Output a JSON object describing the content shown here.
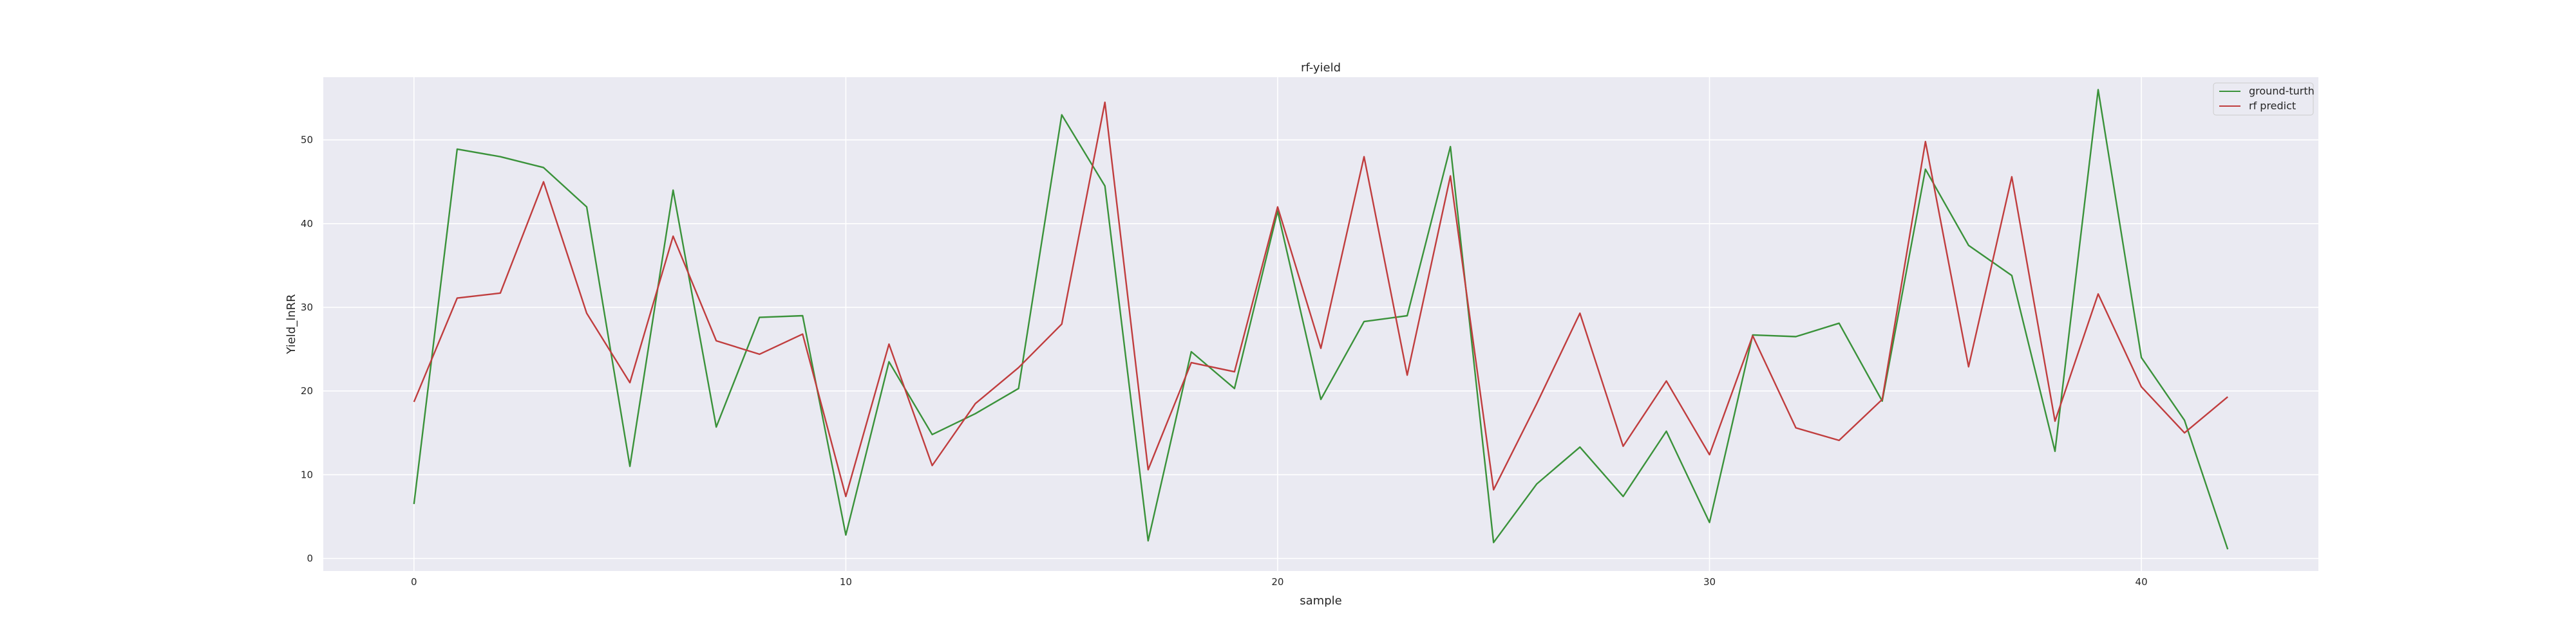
{
  "chart_data": {
    "type": "line",
    "title": "rf-yield",
    "xlabel": "sample",
    "ylabel": "Yield_lnRR",
    "xlim": [
      -2.1,
      44.1
    ],
    "ylim": [
      -1.5,
      57.5
    ],
    "xticks": [
      0,
      10,
      20,
      30,
      40
    ],
    "yticks": [
      0,
      10,
      20,
      30,
      40,
      50
    ],
    "grid": true,
    "legend_position": "top-right",
    "series": [
      {
        "name": "ground-turth",
        "color": "#3a923a",
        "x": [
          0,
          1,
          2,
          3,
          4,
          5,
          6,
          7,
          8,
          9,
          10,
          11,
          12,
          13,
          14,
          15,
          16,
          17,
          18,
          19,
          20,
          21,
          22,
          23,
          24,
          25,
          26,
          27,
          28,
          29,
          30,
          31,
          32,
          33,
          34,
          35,
          36,
          37,
          38,
          39,
          40,
          41,
          42
        ],
        "values": [
          6.5,
          48.9,
          48.0,
          46.7,
          42.0,
          11.0,
          44.0,
          15.7,
          28.8,
          29.0,
          2.8,
          23.5,
          14.8,
          17.3,
          20.3,
          53.0,
          44.5,
          2.1,
          24.7,
          20.3,
          41.5,
          19.0,
          28.3,
          29.0,
          49.2,
          1.9,
          8.9,
          13.3,
          7.4,
          15.2,
          4.3,
          26.7,
          26.5,
          28.1,
          18.8,
          46.5,
          37.4,
          33.8,
          12.8,
          56.0,
          24.0,
          16.5,
          1.1
        ]
      },
      {
        "name": "rf predict",
        "color": "#c03d3e",
        "x": [
          0,
          1,
          2,
          3,
          4,
          5,
          6,
          7,
          8,
          9,
          10,
          11,
          12,
          13,
          14,
          15,
          16,
          17,
          18,
          19,
          20,
          21,
          22,
          23,
          24,
          25,
          26,
          27,
          28,
          29,
          30,
          31,
          32,
          33,
          34,
          35,
          36,
          37,
          38,
          39,
          40,
          41,
          42
        ],
        "values": [
          18.7,
          31.1,
          31.7,
          45.0,
          29.3,
          21.0,
          38.5,
          26.0,
          24.4,
          26.8,
          7.4,
          25.6,
          11.1,
          18.5,
          22.8,
          28.0,
          54.5,
          10.6,
          23.4,
          22.3,
          42.0,
          25.1,
          48.0,
          21.9,
          45.7,
          8.2,
          18.5,
          29.3,
          13.4,
          21.2,
          12.4,
          26.6,
          15.6,
          14.1,
          19.0,
          49.8,
          22.9,
          45.6,
          16.4,
          31.6,
          20.5,
          15.0,
          19.3
        ]
      }
    ]
  }
}
